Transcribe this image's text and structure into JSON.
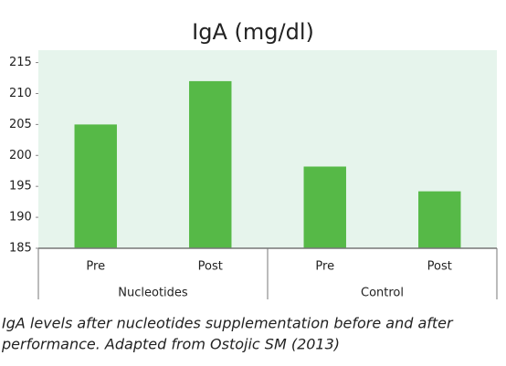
{
  "chart_data": {
    "type": "bar",
    "title": "IgA (mg/dl)",
    "categories": [
      "Pre",
      "Post",
      "Pre",
      "Post"
    ],
    "groups": [
      "Nucleotides",
      "Control"
    ],
    "values": [
      205,
      212,
      198.2,
      194.2
    ],
    "color": "#56b947",
    "background": "#e6f4ec",
    "ylim": [
      185,
      217
    ],
    "yticks": [
      185,
      190,
      195,
      200,
      205,
      210,
      215
    ],
    "caption": [
      "IgA levels after nucleotides supplementation before and after",
      "performance. Adapted from Ostojic SM (2013)"
    ]
  }
}
